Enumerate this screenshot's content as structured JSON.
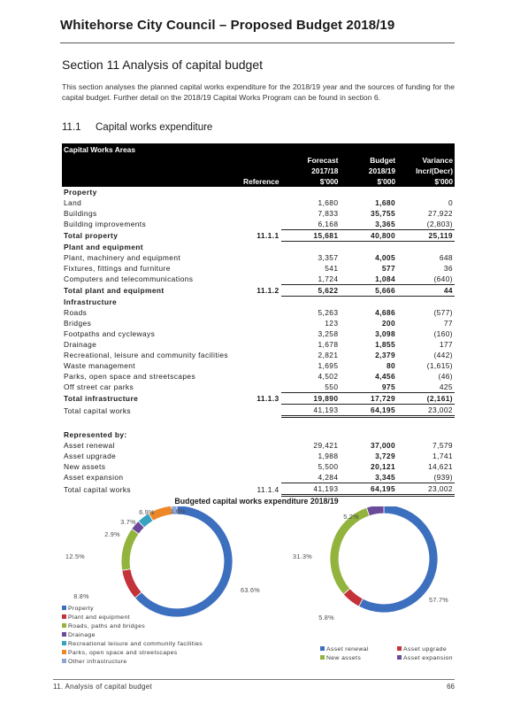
{
  "header": {
    "title": "Whitehorse City Council – Proposed Budget 2018/19"
  },
  "section": {
    "title": "Section 11 Analysis of capital budget",
    "intro": "This section analyses the planned capital works expenditure for the 2018/19 year and the sources of funding for the capital budget. Further detail on the 2018/19 Capital Works Program can be found in section 6."
  },
  "subsection": {
    "number": "11.1",
    "title": "Capital works expenditure"
  },
  "table": {
    "heading": "Capital Works Areas",
    "col_heads": [
      {
        "ref": "",
        "f": "Forecast",
        "b": "Budget",
        "v": "Variance"
      },
      {
        "ref": "",
        "f": "2017/18",
        "b": "2018/19",
        "v": "Incr/(Decr)"
      },
      {
        "ref": "Reference",
        "f": "$'000",
        "b": "$'000",
        "v": "$'000"
      }
    ],
    "rows": [
      {
        "kind": "grp",
        "item": "Property",
        "ref": "",
        "f": "",
        "b": "",
        "v": ""
      },
      {
        "kind": "row",
        "item": "Land",
        "ref": "",
        "f": "1,680",
        "b": "1,680",
        "v": "0"
      },
      {
        "kind": "row",
        "item": "Buildings",
        "ref": "",
        "f": "7,833",
        "b": "35,755",
        "v": "27,922"
      },
      {
        "kind": "ul",
        "item": "Building improvements",
        "ref": "",
        "f": "6,168",
        "b": "3,365",
        "v": "(2,803)"
      },
      {
        "kind": "tot",
        "item": "Total property",
        "ref": "11.1.1",
        "f": "15,681",
        "b": "40,800",
        "v": "25,119"
      },
      {
        "kind": "grp",
        "item": "Plant and equipment",
        "ref": "",
        "f": "",
        "b": "",
        "v": ""
      },
      {
        "kind": "row",
        "item": "Plant, machinery and equipment",
        "ref": "",
        "f": "3,357",
        "b": "4,005",
        "v": "648"
      },
      {
        "kind": "row",
        "item": "Fixtures, fittings and furniture",
        "ref": "",
        "f": "541",
        "b": "577",
        "v": "36"
      },
      {
        "kind": "ul",
        "item": "Computers and telecommunications",
        "ref": "",
        "f": "1,724",
        "b": "1,084",
        "v": "(640)"
      },
      {
        "kind": "tot",
        "item": "Total plant and equipment",
        "ref": "11.1.2",
        "f": "5,622",
        "b": "5,666",
        "v": "44"
      },
      {
        "kind": "grp",
        "item": "Infrastructure",
        "ref": "",
        "f": "",
        "b": "",
        "v": ""
      },
      {
        "kind": "row",
        "item": "Roads",
        "ref": "",
        "f": "5,263",
        "b": "4,686",
        "v": "(577)"
      },
      {
        "kind": "row",
        "item": "Bridges",
        "ref": "",
        "f": "123",
        "b": "200",
        "v": "77"
      },
      {
        "kind": "row",
        "item": "Footpaths and cycleways",
        "ref": "",
        "f": "3,258",
        "b": "3,098",
        "v": "(160)"
      },
      {
        "kind": "row",
        "item": "Drainage",
        "ref": "",
        "f": "1,678",
        "b": "1,855",
        "v": "177"
      },
      {
        "kind": "row",
        "item": "Recreational, leisure and community facilities",
        "ref": "",
        "f": "2,821",
        "b": "2,379",
        "v": "(442)"
      },
      {
        "kind": "row",
        "item": "Waste management",
        "ref": "",
        "f": "1,695",
        "b": "80",
        "v": "(1,615)"
      },
      {
        "kind": "row",
        "item": "Parks, open space and streetscapes",
        "ref": "",
        "f": "4,502",
        "b": "4,456",
        "v": "(46)"
      },
      {
        "kind": "ul",
        "item": "Off street car parks",
        "ref": "",
        "f": "550",
        "b": "975",
        "v": "425"
      },
      {
        "kind": "tot",
        "item": "Total infrastructure",
        "ref": "11.1.3",
        "f": "19,890",
        "b": "17,729",
        "v": "(2,161)"
      },
      {
        "kind": "dbl",
        "item": "Total capital works",
        "ref": "",
        "f": "41,193",
        "b": "64,195",
        "v": "23,002"
      },
      {
        "kind": "gap",
        "item": "",
        "ref": "",
        "f": "",
        "b": "",
        "v": ""
      },
      {
        "kind": "grp",
        "item": "Represented by:",
        "ref": "",
        "f": "",
        "b": "",
        "v": ""
      },
      {
        "kind": "row",
        "item": "Asset renewal",
        "ref": "",
        "f": "29,421",
        "b": "37,000",
        "v": "7,579"
      },
      {
        "kind": "row",
        "item": "Asset upgrade",
        "ref": "",
        "f": "1,988",
        "b": "3,729",
        "v": "1,741"
      },
      {
        "kind": "row",
        "item": "New assets",
        "ref": "",
        "f": "5,500",
        "b": "20,121",
        "v": "14,621"
      },
      {
        "kind": "ul",
        "item": "Asset expansion",
        "ref": "",
        "f": "4,284",
        "b": "3,345",
        "v": "(939)"
      },
      {
        "kind": "dbl",
        "item": "Total capital works",
        "ref": "11.1.4",
        "f": "41,193",
        "b": "64,195",
        "v": "23,002"
      }
    ]
  },
  "chart_data": [
    {
      "type": "pie",
      "title": "Budgeted capital works expenditure 2018/19",
      "categories": [
        "Property",
        "Plant and equipment",
        "Roads, paths and bridges",
        "Drainage",
        "Recreational leisure and community facilities",
        "Parks, open space and streetscapes",
        "Other infrastructure"
      ],
      "values": [
        63.6,
        8.8,
        12.5,
        2.9,
        3.7,
        6.9,
        1.6
      ],
      "labels": [
        "63.6%",
        "8.8%",
        "12.5%",
        "2.9%",
        "3.7%",
        "6.9%",
        "1.6%"
      ],
      "colors": [
        "#3d6fbf",
        "#c4323a",
        "#92b43d",
        "#6a4a99",
        "#37a2c2",
        "#ee8728",
        "#8ea5d4"
      ],
      "legend_position": "bottom-left"
    },
    {
      "type": "pie",
      "categories": [
        "Asset renewal",
        "Asset upgrade",
        "New assets",
        "Asset expansion"
      ],
      "values": [
        57.7,
        5.8,
        31.3,
        5.2
      ],
      "labels": [
        "57.7%",
        "5.8%",
        "31.3%",
        "5.2%"
      ],
      "colors": [
        "#3d6fbf",
        "#c4323a",
        "#92b43d",
        "#6a4a99"
      ],
      "legend_position": "bottom"
    }
  ],
  "footer": {
    "left": "11. Analysis of capital budget",
    "right": "66"
  }
}
